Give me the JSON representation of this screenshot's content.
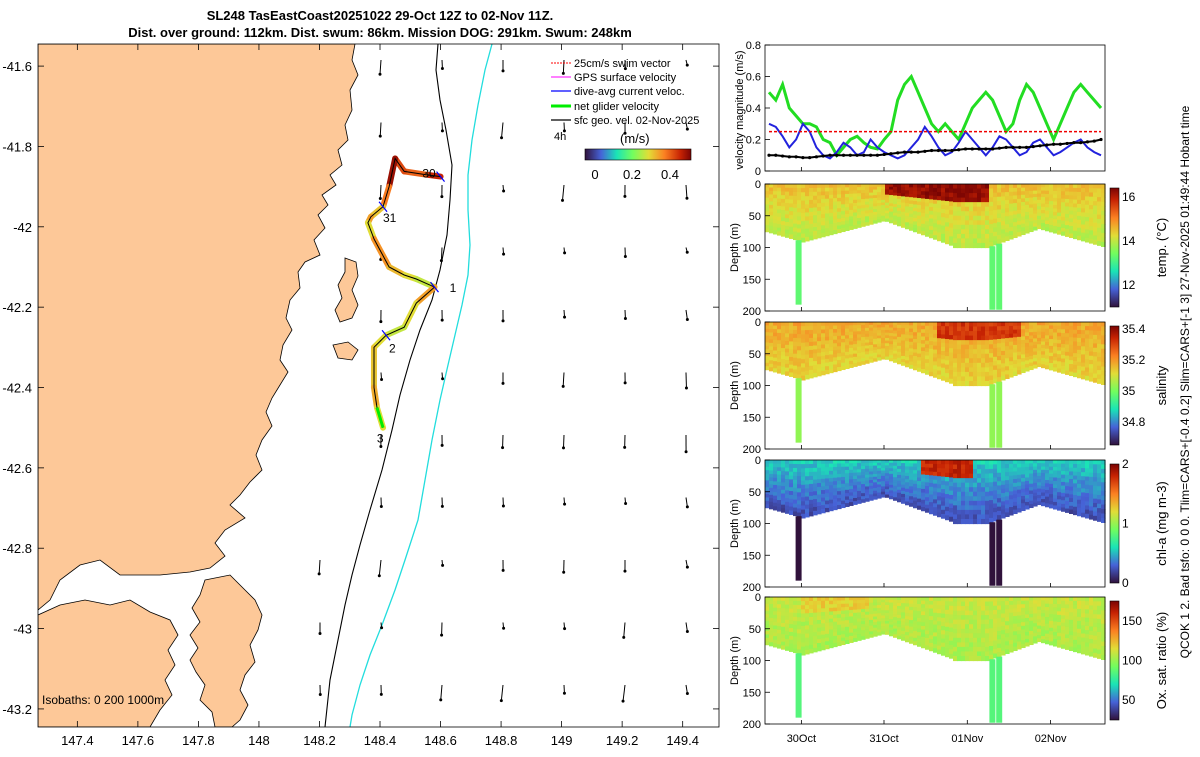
{
  "title": {
    "line1": "SL248 TasEastCoast20251022 29-Oct 12Z to 02-Nov 11Z.",
    "line2": "Dist. over ground: 112km. Dist. swum: 86km. Mission DOG: 291km. Swum: 248km"
  },
  "side_text": "QCOK 1 2. Bad tsfo: 0 0 0. Tlim=CARS+[-0.4 0.2] Slim=CARS+[-1 3] 27-Nov-2025 01:49:44 Hobart time",
  "map": {
    "x_ticks": [
      "147.4",
      "147.6",
      "147.8",
      "148",
      "148.2",
      "148.4",
      "148.6",
      "148.8",
      "149",
      "149.2",
      "149.4"
    ],
    "y_ticks": [
      "-41.6",
      "-41.8",
      "-42",
      "-42.2",
      "-42.4",
      "-42.6",
      "-42.8",
      "-43",
      "-43.2"
    ],
    "legend": [
      {
        "label": "25cm/s swim vector",
        "color": "#ff0000"
      },
      {
        "label": "GPS surface velocity",
        "color": "#ff00ff"
      },
      {
        "label": "dive-avg current veloc.",
        "color": "#0000ff"
      },
      {
        "label": "net glider velocity",
        "color": "#00ee00"
      },
      {
        "label": "sfc geo. vel. 02-Nov-2025",
        "color": "#000000"
      }
    ],
    "legend_extra": "4h",
    "colorbar_title": "(m/s)",
    "colorbar_ticks": [
      "0",
      "0.2",
      "0.4"
    ],
    "day_labels": [
      {
        "text": "30",
        "lon": 148.52,
        "lat": -41.865
      },
      {
        "text": "31",
        "lon": 148.39,
        "lat": -41.975
      },
      {
        "text": "1",
        "lon": 148.61,
        "lat": -42.15
      },
      {
        "text": "2",
        "lon": 148.41,
        "lat": -42.3
      },
      {
        "text": "3",
        "lon": 148.37,
        "lat": -42.525
      }
    ],
    "isobaths_label": "Isobaths: 0   200   1000m"
  },
  "chart_data": [
    {
      "type": "line",
      "name": "velocity-panel",
      "ylabel": "velocity magnitude (m/s)",
      "ylim": [
        0,
        0.8
      ],
      "y_ticks": [
        "0",
        "0.2",
        "0.4",
        "0.6",
        "0.8"
      ],
      "series": [
        {
          "name": "net glider velocity",
          "color": "#22dd22",
          "values": [
            0.5,
            0.45,
            0.55,
            0.4,
            0.35,
            0.3,
            0.3,
            0.28,
            0.2,
            0.18,
            0.1,
            0.15,
            0.2,
            0.22,
            0.18,
            0.15,
            0.14,
            0.2,
            0.25,
            0.45,
            0.55,
            0.6,
            0.5,
            0.4,
            0.3,
            0.25,
            0.3,
            0.25,
            0.2,
            0.3,
            0.4,
            0.45,
            0.5,
            0.45,
            0.35,
            0.25,
            0.3,
            0.45,
            0.55,
            0.5,
            0.4,
            0.3,
            0.2,
            0.3,
            0.4,
            0.5,
            0.55,
            0.5,
            0.45,
            0.4
          ]
        },
        {
          "name": "dive-avg current",
          "color": "#2222dd",
          "values": [
            0.3,
            0.28,
            0.22,
            0.15,
            0.2,
            0.3,
            0.25,
            0.15,
            0.1,
            0.08,
            0.12,
            0.18,
            0.15,
            0.1,
            0.12,
            0.2,
            0.15,
            0.12,
            0.1,
            0.08,
            0.1,
            0.15,
            0.2,
            0.28,
            0.22,
            0.15,
            0.1,
            0.12,
            0.18,
            0.25,
            0.2,
            0.15,
            0.1,
            0.15,
            0.22,
            0.2,
            0.15,
            0.1,
            0.12,
            0.18,
            0.2,
            0.15,
            0.1,
            0.12,
            0.15,
            0.18,
            0.2,
            0.15,
            0.12,
            0.1
          ]
        },
        {
          "name": "swim vector 25cm/s",
          "color": "#ee0000",
          "dashed": true,
          "values": [
            0.25,
            0.25,
            0.25,
            0.25,
            0.25,
            0.25,
            0.25,
            0.25,
            0.25,
            0.25,
            0.25,
            0.25,
            0.25,
            0.25,
            0.25,
            0.25,
            0.25,
            0.25,
            0.25,
            0.25,
            0.25,
            0.25,
            0.25,
            0.25,
            0.25,
            0.25,
            0.25,
            0.25,
            0.25,
            0.25,
            0.25,
            0.25,
            0.25,
            0.25,
            0.25,
            0.25,
            0.25,
            0.25,
            0.25,
            0.25,
            0.25,
            0.25,
            0.25,
            0.25,
            0.25,
            0.25,
            0.25,
            0.25,
            0.25,
            0.25
          ]
        },
        {
          "name": "sfc geo vel",
          "color": "#000000",
          "values": [
            0.1,
            0.1,
            0.095,
            0.09,
            0.09,
            0.085,
            0.085,
            0.09,
            0.095,
            0.1,
            0.1,
            0.1,
            0.1,
            0.1,
            0.1,
            0.1,
            0.1,
            0.105,
            0.11,
            0.115,
            0.12,
            0.12,
            0.12,
            0.125,
            0.13,
            0.13,
            0.13,
            0.13,
            0.135,
            0.14,
            0.14,
            0.14,
            0.14,
            0.14,
            0.145,
            0.15,
            0.15,
            0.15,
            0.15,
            0.155,
            0.16,
            0.165,
            0.17,
            0.17,
            0.175,
            0.18,
            0.18,
            0.185,
            0.19,
            0.2
          ]
        }
      ]
    },
    {
      "type": "heatmap",
      "name": "temperature-section",
      "ylabel": "Depth (m)",
      "ylim": [
        0,
        200
      ],
      "y_ticks": [
        "0",
        "50",
        "100",
        "150",
        "200"
      ],
      "colorbar_label": "temp. (°C)",
      "clim": [
        11,
        16.4
      ],
      "colorbar_ticks": [
        "12",
        "14",
        "16"
      ],
      "colormap": "turbo",
      "profile": {
        "surface": 14.5,
        "deep": 13.9,
        "hot_patch": 16.2,
        "hot_range": [
          0.35,
          0.65
        ]
      }
    },
    {
      "type": "heatmap",
      "name": "salinity-section",
      "ylabel": "Depth (m)",
      "ylim": [
        0,
        200
      ],
      "y_ticks": [
        "0",
        "50",
        "100",
        "150",
        "200"
      ],
      "colorbar_label": "salinity",
      "clim": [
        34.65,
        35.42
      ],
      "colorbar_ticks": [
        "34.8",
        "35",
        "35.2",
        "35.4"
      ],
      "colormap": "turbo",
      "profile": {
        "surface": 35.18,
        "deep": 35.12,
        "hot_patch": 35.32,
        "hot_range": [
          0.5,
          0.75
        ]
      }
    },
    {
      "type": "heatmap",
      "name": "chlorophyll-section",
      "ylabel": "Depth (m)",
      "ylim": [
        0,
        200
      ],
      "y_ticks": [
        "0",
        "50",
        "100",
        "150",
        "200"
      ],
      "colorbar_label": "chl-a  (mg m-3)",
      "clim": [
        0,
        2
      ],
      "colorbar_ticks": [
        "0",
        "1",
        "2"
      ],
      "colormap": "turbo",
      "profile": {
        "surface": 0.55,
        "deep": 0.2,
        "hot_patch": 1.8,
        "hot_range": [
          0.45,
          0.6
        ]
      }
    },
    {
      "type": "heatmap",
      "name": "oxygen-section",
      "ylabel": "Depth (m)",
      "ylim": [
        0,
        200
      ],
      "y_ticks": [
        "0",
        "50",
        "100",
        "150",
        "200"
      ],
      "colorbar_label": "Ox. sat. ratio (%)",
      "clim": [
        25,
        175
      ],
      "colorbar_ticks": [
        "50",
        "100",
        "150"
      ],
      "colormap": "turbo",
      "profile": {
        "surface": 110,
        "deep": 103,
        "hot_patch": 118,
        "hot_range": [
          0.1,
          0.3
        ]
      }
    }
  ],
  "time_axis": {
    "ticks": [
      "30Oct",
      "31Oct",
      "01Nov",
      "02Nov"
    ],
    "tick_fracs": [
      0.107,
      0.35,
      0.595,
      0.84
    ]
  },
  "track": {
    "colorbar_clim": [
      0,
      0.5
    ],
    "points": [
      {
        "lon": 148.6,
        "lat": -41.875,
        "v": 0.45
      },
      {
        "lon": 148.55,
        "lat": -41.87,
        "v": 0.4
      },
      {
        "lon": 148.48,
        "lat": -41.862,
        "v": 0.42
      },
      {
        "lon": 148.45,
        "lat": -41.83,
        "v": 0.48
      },
      {
        "lon": 148.43,
        "lat": -41.9,
        "v": 0.38
      },
      {
        "lon": 148.41,
        "lat": -41.95,
        "v": 0.32
      },
      {
        "lon": 148.37,
        "lat": -41.975,
        "v": 0.35
      },
      {
        "lon": 148.36,
        "lat": -41.99,
        "v": 0.3
      },
      {
        "lon": 148.38,
        "lat": -42.03,
        "v": 0.36
      },
      {
        "lon": 148.43,
        "lat": -42.1,
        "v": 0.33
      },
      {
        "lon": 148.48,
        "lat": -42.12,
        "v": 0.3
      },
      {
        "lon": 148.52,
        "lat": -42.13,
        "v": 0.28
      },
      {
        "lon": 148.58,
        "lat": -42.15,
        "v": 0.35
      },
      {
        "lon": 148.52,
        "lat": -42.19,
        "v": 0.3
      },
      {
        "lon": 148.48,
        "lat": -42.25,
        "v": 0.28
      },
      {
        "lon": 148.42,
        "lat": -42.27,
        "v": 0.3
      },
      {
        "lon": 148.38,
        "lat": -42.3,
        "v": 0.32
      },
      {
        "lon": 148.38,
        "lat": -42.4,
        "v": 0.34
      },
      {
        "lon": 148.39,
        "lat": -42.45,
        "v": 0.3
      },
      {
        "lon": 148.41,
        "lat": -42.5,
        "v": 0.2
      }
    ]
  }
}
